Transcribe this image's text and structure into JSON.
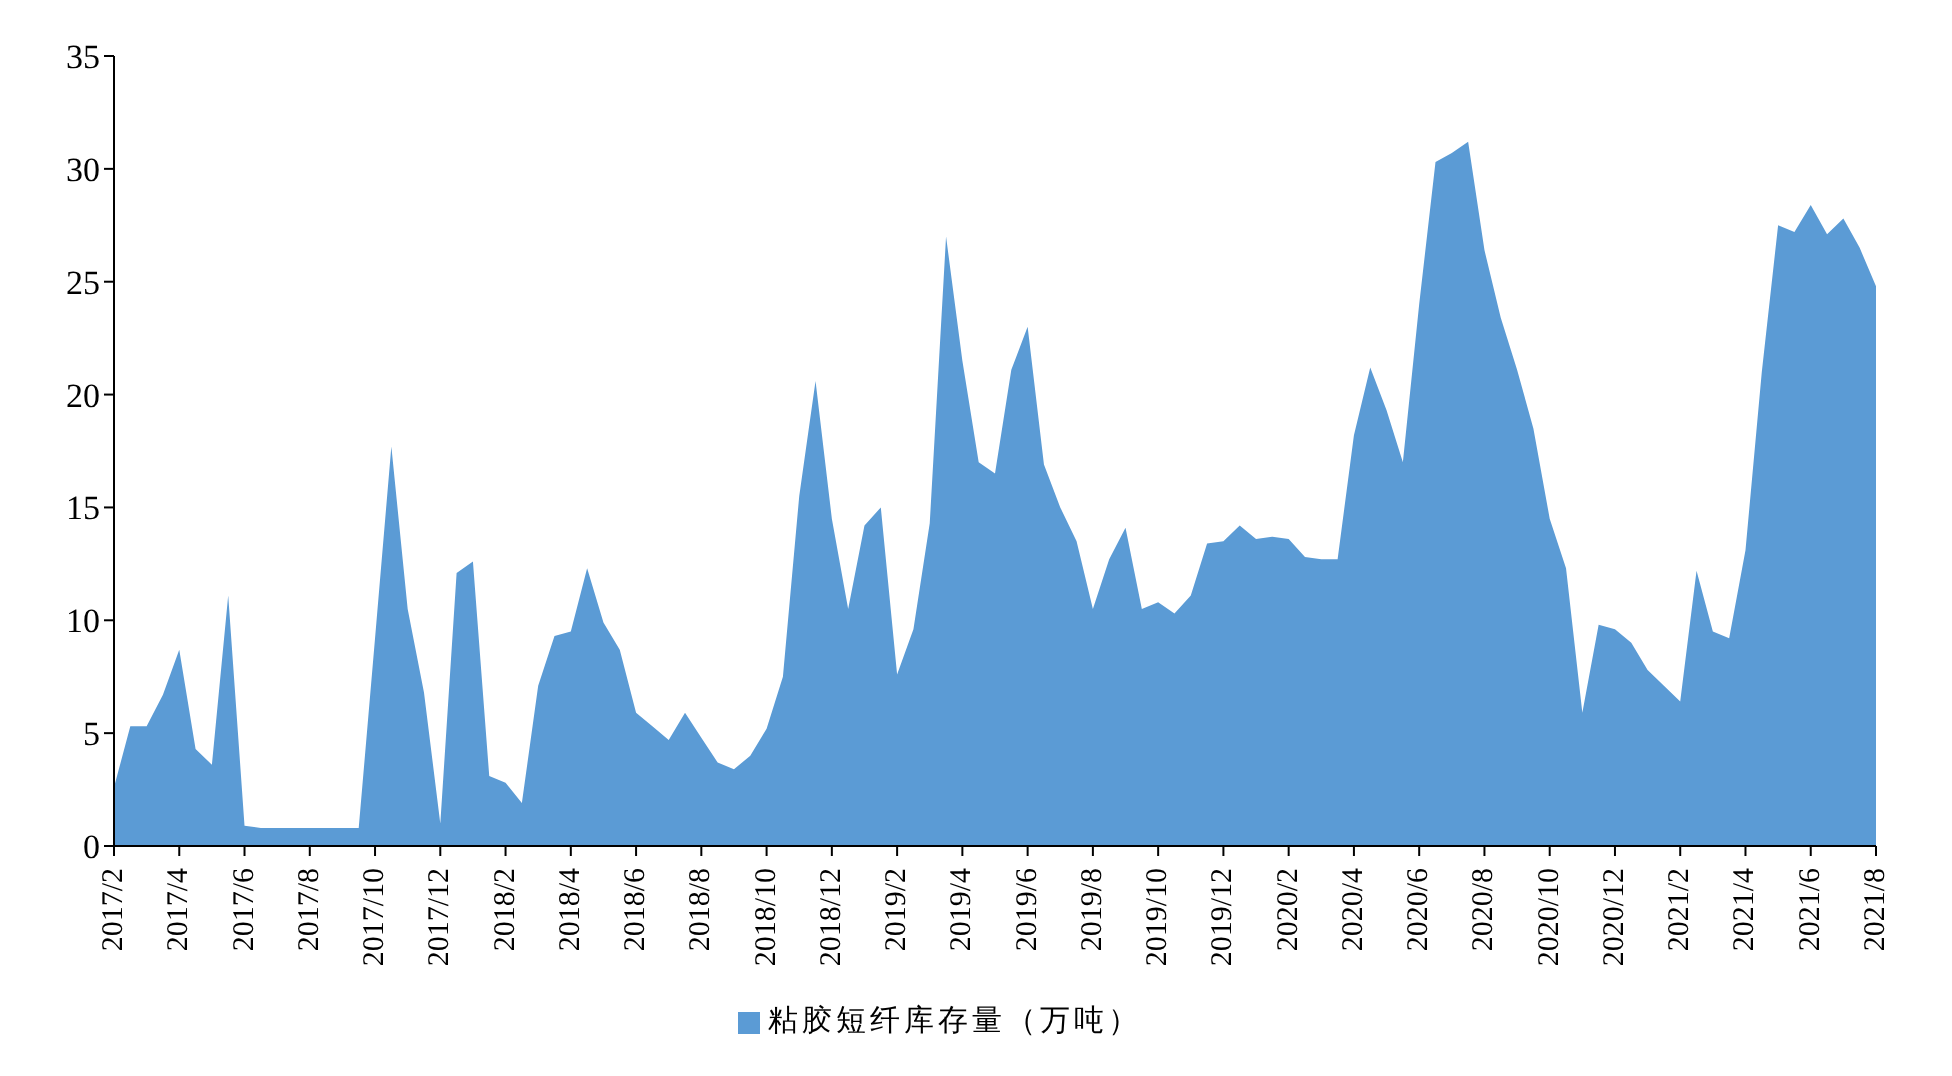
{
  "chart_data": {
    "type": "area",
    "categories": [
      "2017/2",
      null,
      null,
      null,
      "2017/4",
      null,
      null,
      null,
      "2017/6",
      null,
      null,
      null,
      "2017/8",
      null,
      null,
      null,
      "2017/10",
      null,
      null,
      null,
      "2017/12",
      null,
      null,
      null,
      "2018/2",
      null,
      null,
      null,
      "2018/4",
      null,
      null,
      null,
      "2018/6",
      null,
      null,
      null,
      "2018/8",
      null,
      null,
      null,
      "2018/10",
      null,
      null,
      null,
      "2018/12",
      null,
      null,
      null,
      "2019/2",
      null,
      null,
      null,
      "2019/4",
      null,
      null,
      null,
      "2019/6",
      null,
      null,
      null,
      "2019/8",
      null,
      null,
      null,
      "2019/10",
      null,
      null,
      null,
      "2019/12",
      null,
      null,
      null,
      "2020/2",
      null,
      null,
      null,
      "2020/4",
      null,
      null,
      null,
      "2020/6",
      null,
      null,
      null,
      "2020/8",
      null,
      null,
      null,
      "2020/10",
      null,
      null,
      null,
      "2020/12",
      null,
      null,
      null,
      "2021/2",
      null,
      null,
      null,
      "2021/4",
      null,
      null,
      null,
      "2021/6",
      null,
      null,
      null,
      "2021/8"
    ],
    "series": [
      {
        "name": "粘胶短纤库存量（万吨）",
        "color": "#5b9bd5",
        "values": [
          2.6,
          5.3,
          5.3,
          6.7,
          8.7,
          4.3,
          3.6,
          11.1,
          0.9,
          0.8,
          0.8,
          0.8,
          0.8,
          0.8,
          0.8,
          0.8,
          9.2,
          17.7,
          10.5,
          6.8,
          1.0,
          12.1,
          12.6,
          3.1,
          2.8,
          1.9,
          7.1,
          9.3,
          9.5,
          12.3,
          9.9,
          8.7,
          5.9,
          5.3,
          4.7,
          5.9,
          4.8,
          3.7,
          3.4,
          4.0,
          5.2,
          7.5,
          15.5,
          20.6,
          14.5,
          10.5,
          14.2,
          15.0,
          7.6,
          9.6,
          14.3,
          27.0,
          21.5,
          17.0,
          16.5,
          21.1,
          23.0,
          16.9,
          15.0,
          13.5,
          10.5,
          12.7,
          14.1,
          10.5,
          10.8,
          10.3,
          11.1,
          13.4,
          13.5,
          14.2,
          13.6,
          13.7,
          13.6,
          12.8,
          12.7,
          12.7,
          18.2,
          21.2,
          19.3,
          17.0,
          24.0,
          30.3,
          30.7,
          31.2,
          26.4,
          23.4,
          21.1,
          18.5,
          14.5,
          12.3,
          5.9,
          9.8,
          9.6,
          9.0,
          7.8,
          7.1,
          6.4,
          12.2,
          9.5,
          9.2,
          13.1,
          21.0,
          27.5,
          27.2,
          28.4,
          27.1,
          27.8,
          26.5,
          24.8
        ]
      }
    ],
    "ylim": [
      0,
      35
    ],
    "yticks": [
      0,
      5,
      10,
      15,
      20,
      25,
      30,
      35
    ],
    "legend": "bottom"
  }
}
